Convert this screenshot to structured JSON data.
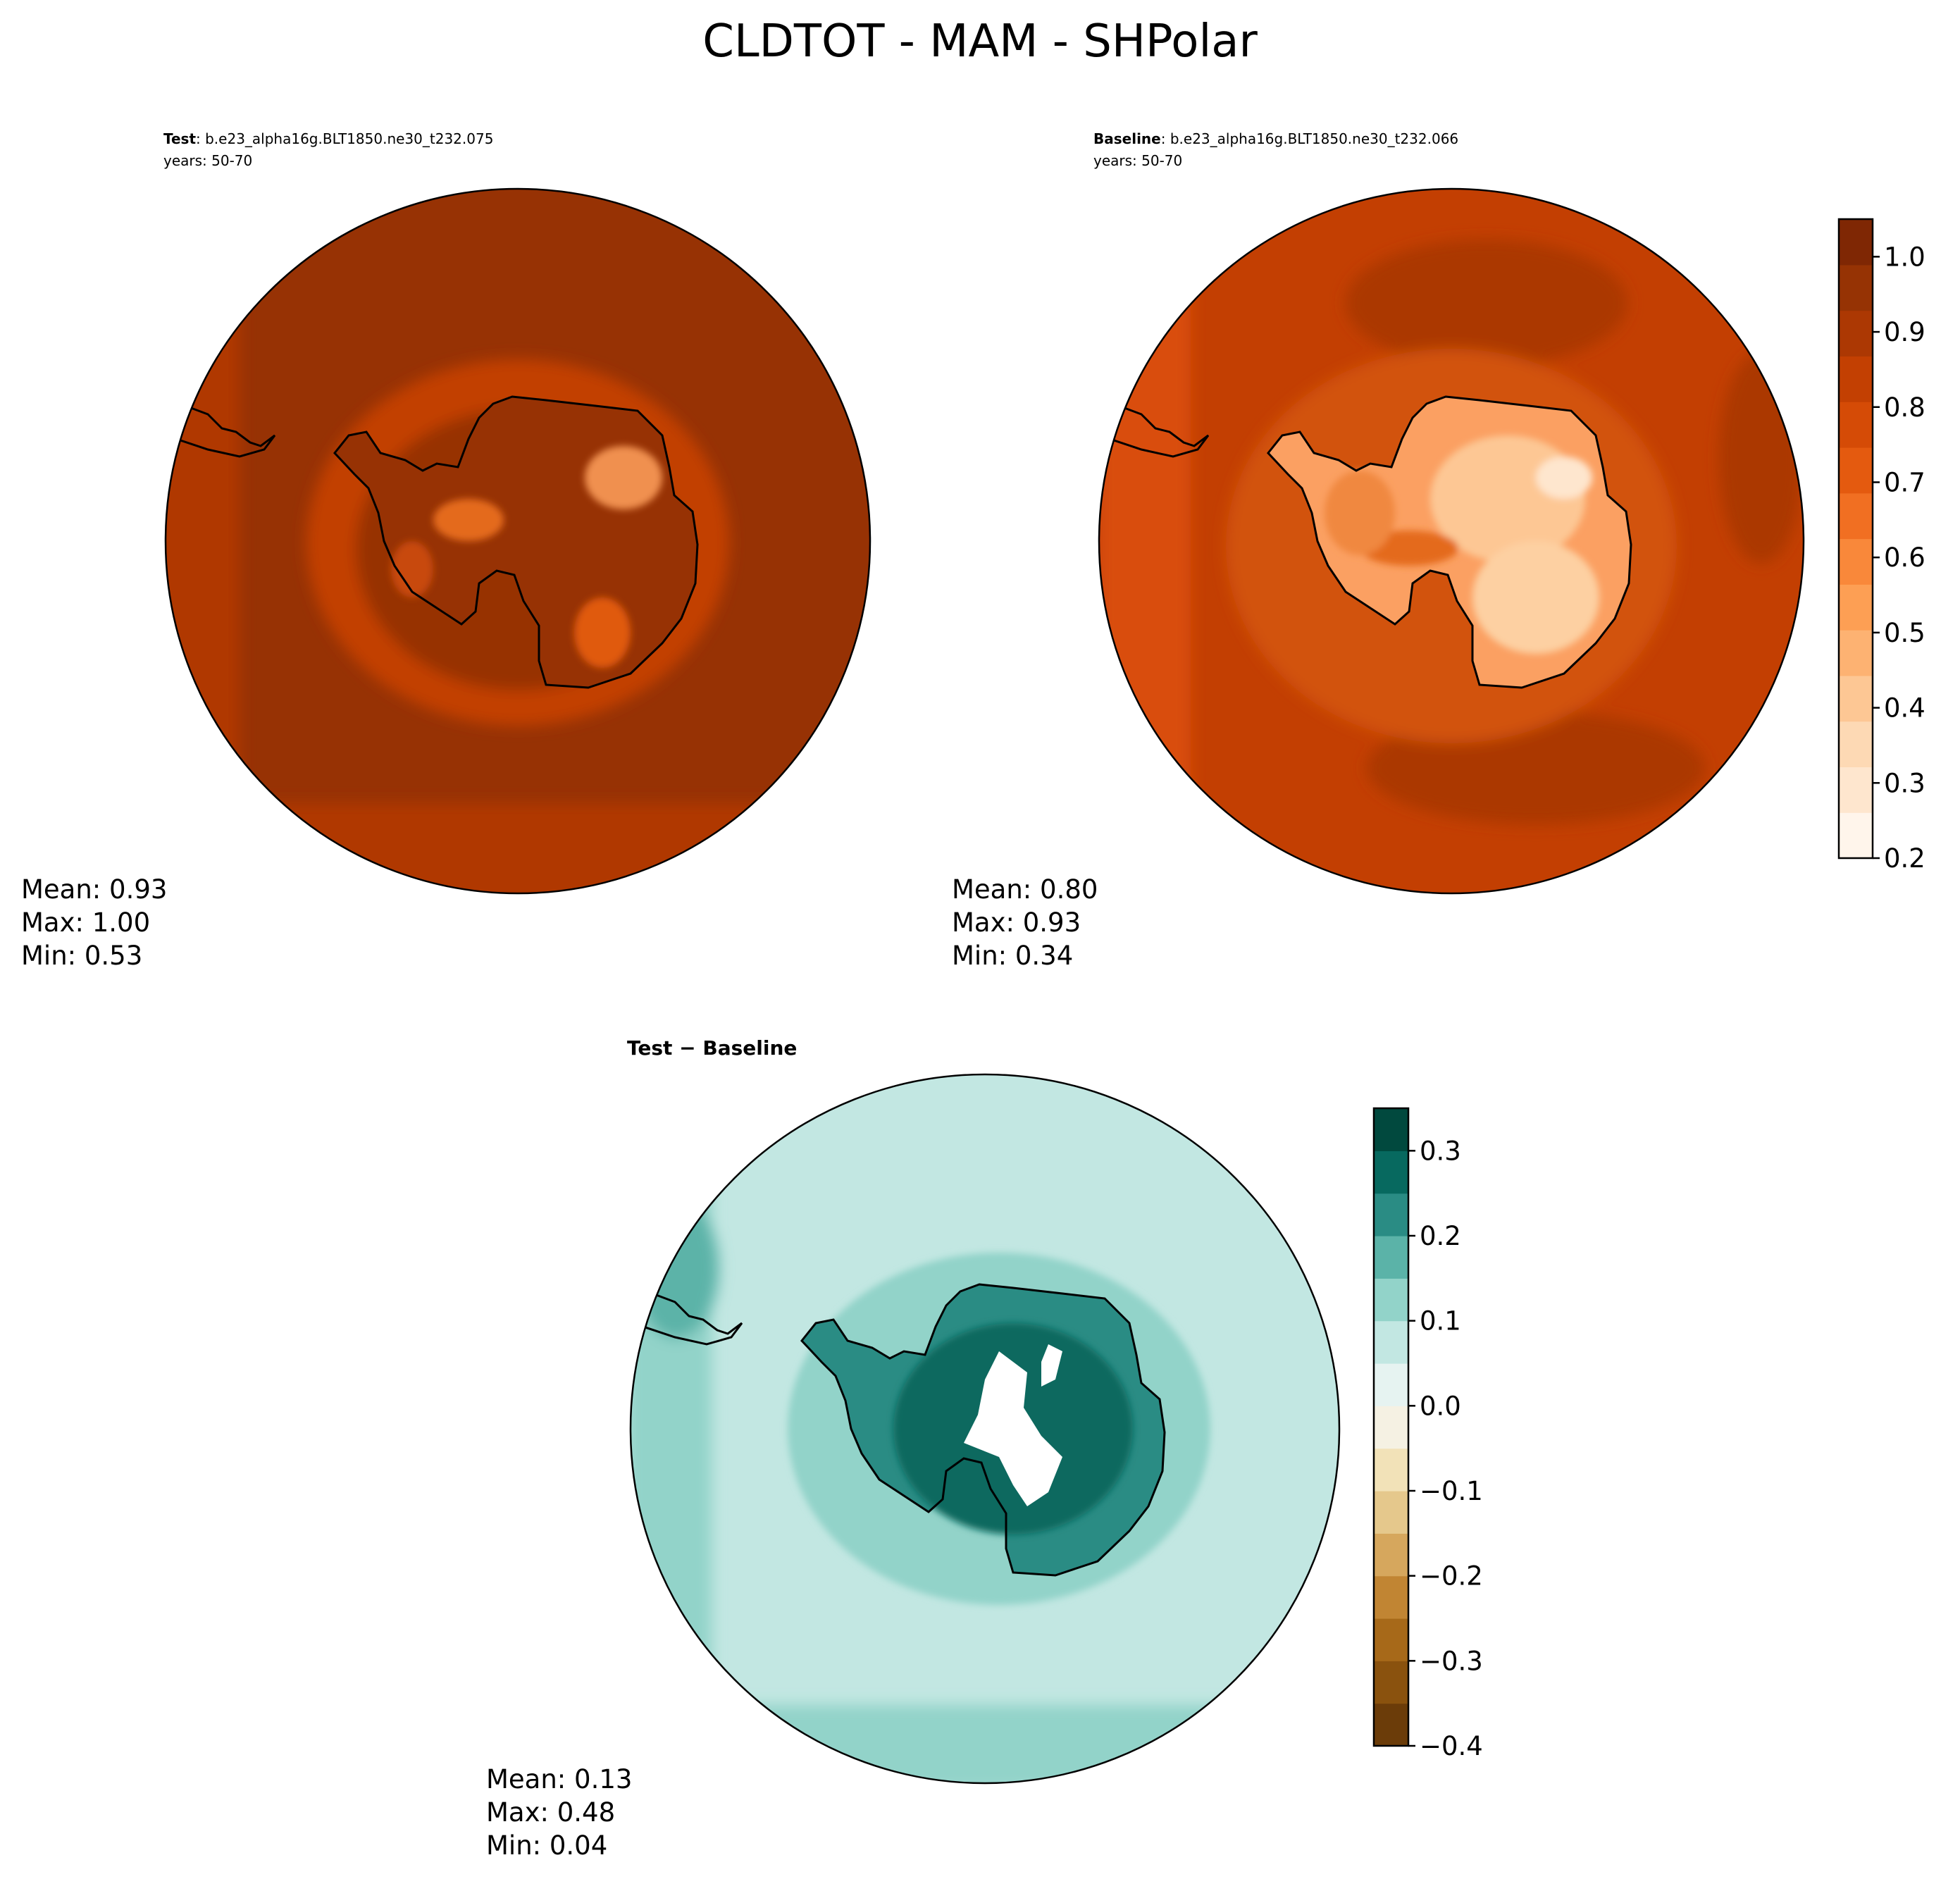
{
  "figure": {
    "title": "CLDTOT - MAM - SHPolar"
  },
  "panels": {
    "test": {
      "label_bold": "Test",
      "label_rest": ": b.e23_alpha16g.BLT1850.ne30_t232.075",
      "years": "years: 50-70",
      "stats": {
        "mean": "Mean:  0.93",
        "max": "Max:  1.00",
        "min": "Min:  0.53"
      }
    },
    "baseline": {
      "label_bold": "Baseline",
      "label_rest": ": b.e23_alpha16g.BLT1850.ne30_t232.066",
      "years": "years: 50-70",
      "stats": {
        "mean": "Mean:  0.80",
        "max": "Max:  0.93",
        "min": "Min:  0.34"
      }
    },
    "diff": {
      "label": "Test − Baseline",
      "stats": {
        "mean": "Mean:  0.13",
        "max": "Max:  0.48",
        "min": "Min:  0.04"
      }
    }
  },
  "colorbars": {
    "main": {
      "ticks": [
        "0.2",
        "0.3",
        "0.4",
        "0.5",
        "0.6",
        "0.7",
        "0.8",
        "0.9",
        "1.0"
      ],
      "range": [
        0.2,
        1.05
      ],
      "colors": [
        "#fff5eb",
        "#fee6ce",
        "#fdd9b4",
        "#fdc794",
        "#fdb272",
        "#fd9f54",
        "#f9883a",
        "#f16f22",
        "#e45a0f",
        "#d54b06",
        "#c34002",
        "#ac3803",
        "#963304",
        "#7f2704"
      ]
    },
    "diff": {
      "ticks": [
        "−0.4",
        "−0.3",
        "−0.2",
        "−0.1",
        "0.0",
        "0.1",
        "0.2",
        "0.3"
      ],
      "range": [
        -0.4,
        0.35
      ],
      "colors": [
        "#6b3c09",
        "#8a520e",
        "#a76919",
        "#c18533",
        "#d6a75d",
        "#e5c88c",
        "#f2e2b8",
        "#f5f1e3",
        "#e6f3f1",
        "#c2e7e2",
        "#92d3c9",
        "#5bb3a8",
        "#2a8c84",
        "#07695f",
        "#01493e"
      ]
    }
  },
  "map_colors": {
    "test_ocean": "#973204",
    "baseline_ocean": "#c33f02",
    "diff_ocean": "#c2e7e2",
    "coastline": "#000000"
  }
}
